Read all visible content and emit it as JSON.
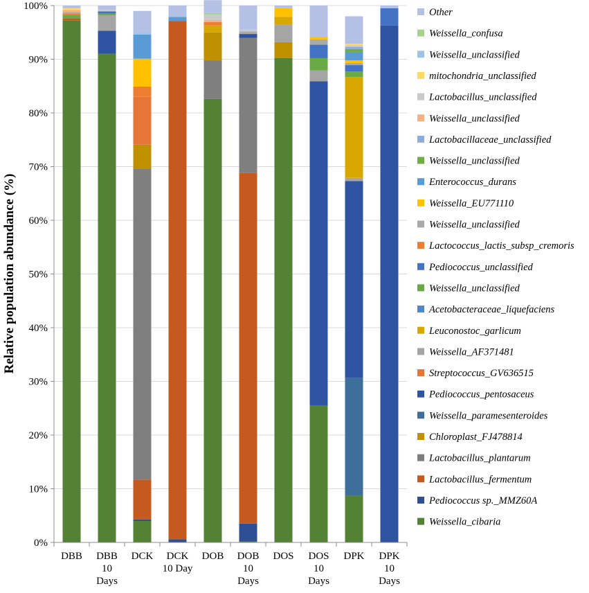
{
  "chart_data": {
    "type": "stacked-bar",
    "ylabel": "Relative population abundance (%)",
    "ylim": [
      0,
      100
    ],
    "yticks": [
      "0%",
      "10%",
      "20%",
      "30%",
      "40%",
      "50%",
      "60%",
      "70%",
      "80%",
      "90%",
      "100%"
    ],
    "categories": [
      {
        "lines": [
          "DBB"
        ]
      },
      {
        "lines": [
          "DBB",
          "10",
          "Days"
        ]
      },
      {
        "lines": [
          "DCK"
        ]
      },
      {
        "lines": [
          "DCK",
          "10 Day"
        ]
      },
      {
        "lines": [
          "DOB"
        ]
      },
      {
        "lines": [
          "DOB",
          "10",
          "Days"
        ]
      },
      {
        "lines": [
          "DOS"
        ]
      },
      {
        "lines": [
          "DOS",
          "10",
          "Days"
        ]
      },
      {
        "lines": [
          "DPK"
        ]
      },
      {
        "lines": [
          "DPK",
          "10",
          "Days"
        ]
      }
    ],
    "series": [
      {
        "name": "Weissella_cibaria",
        "color": "#548235",
        "values": [
          97.2,
          91.0,
          4.0,
          0.0,
          82.6,
          0.2,
          90.2,
          25.5,
          8.7,
          0.0
        ]
      },
      {
        "name": "Pediococcus sp._MMZ60A",
        "color": "#2f4f94",
        "values": [
          0.0,
          0.0,
          0.3,
          0.6,
          0.0,
          3.3,
          0.0,
          0.0,
          0.0,
          0.0
        ]
      },
      {
        "name": "Lactobacillus_fermentum",
        "color": "#c55a20",
        "values": [
          0.4,
          0.0,
          7.4,
          96.5,
          0.0,
          65.3,
          0.0,
          0.0,
          0.0,
          0.0
        ]
      },
      {
        "name": "Lactobacillus_plantarum",
        "color": "#7f7f7f",
        "values": [
          0.0,
          0.0,
          57.9,
          0.0,
          7.2,
          25.2,
          0.0,
          0.0,
          0.0,
          0.0
        ]
      },
      {
        "name": "Chloroplast_FJ478814",
        "color": "#bf9000",
        "values": [
          0.0,
          0.0,
          4.5,
          0.0,
          5.2,
          0.0,
          3.0,
          0.0,
          0.0,
          0.0
        ]
      },
      {
        "name": "Weissella_paramesenteroides",
        "color": "#3d6f9a",
        "values": [
          0.0,
          0.0,
          0.0,
          0.0,
          0.0,
          0.0,
          0.0,
          0.0,
          22.0,
          0.0
        ]
      },
      {
        "name": "Pediococcus_pentosaceus",
        "color": "#2e53a0",
        "values": [
          0.0,
          4.3,
          0.0,
          0.0,
          0.0,
          0.7,
          0.0,
          60.4,
          36.6,
          96.3
        ]
      },
      {
        "name": "Streptococcus_GV636515",
        "color": "#e67638",
        "values": [
          0.0,
          0.0,
          8.9,
          0.0,
          0.0,
          0.0,
          0.0,
          0.0,
          0.0,
          0.0
        ]
      },
      {
        "name": "Weissella_AF371481",
        "color": "#a5a5a5",
        "values": [
          0.0,
          2.9,
          0.0,
          0.0,
          0.0,
          0.0,
          3.2,
          2.0,
          0.6,
          0.0
        ]
      },
      {
        "name": "Leuconostoc_garlicum",
        "color": "#d9a800",
        "values": [
          0.0,
          0.0,
          0.0,
          0.0,
          1.3,
          0.0,
          1.5,
          0.0,
          18.8,
          0.0
        ]
      },
      {
        "name": "Acetobacteraceae_liquefaciens",
        "color": "#4f87c7",
        "values": [
          0.0,
          0.0,
          0.0,
          0.0,
          0.0,
          0.0,
          0.0,
          0.0,
          0.0,
          0.0
        ]
      },
      {
        "name": "Weissella_unclassified",
        "color": "#6aaa46",
        "values": [
          0.6,
          0.3,
          0.0,
          0.0,
          0.0,
          0.0,
          0.0,
          2.3,
          1.0,
          0.0
        ]
      },
      {
        "name": "Pediococcus_unclassified",
        "color": "#4472c4",
        "values": [
          0.0,
          0.4,
          0.0,
          0.0,
          0.0,
          0.0,
          0.0,
          2.5,
          1.2,
          3.2
        ]
      },
      {
        "name": "Lactococcus_lactis_subsp_cremoris",
        "color": "#ed7d31",
        "values": [
          0.3,
          0.0,
          1.9,
          0.0,
          0.6,
          0.0,
          0.0,
          0.0,
          0.0,
          0.0
        ]
      },
      {
        "name": "Weissella_unclassified",
        "color": "#a9a9a9",
        "values": [
          0.3,
          0.0,
          0.0,
          0.0,
          0.0,
          0.5,
          0.0,
          1.0,
          0.4,
          0.0
        ]
      },
      {
        "name": "Weissella_EU771110",
        "color": "#ffc000",
        "values": [
          0.0,
          0.0,
          5.2,
          0.0,
          0.0,
          0.0,
          1.6,
          0.5,
          0.5,
          0.0
        ]
      },
      {
        "name": "Enterococcus_durans",
        "color": "#5b9bd5",
        "values": [
          0.0,
          0.0,
          4.5,
          0.8,
          0.0,
          0.0,
          0.0,
          0.0,
          1.5,
          0.0
        ]
      },
      {
        "name": "Weissella_unclassified",
        "color": "#70ad47",
        "values": [
          0.0,
          0.0,
          0.0,
          0.0,
          0.0,
          0.0,
          0.0,
          0.0,
          0.6,
          0.0
        ]
      },
      {
        "name": "Lactobacillaceae_unclassified",
        "color": "#8faadc",
        "values": [
          0.0,
          0.0,
          0.0,
          0.0,
          0.0,
          0.0,
          0.0,
          0.0,
          0.4,
          0.0
        ]
      },
      {
        "name": "Weissella_unclassified",
        "color": "#f4b183",
        "values": [
          0.4,
          0.0,
          0.0,
          0.0,
          0.4,
          0.0,
          0.0,
          0.0,
          0.0,
          0.0
        ]
      },
      {
        "name": "Lactobacillus_unclassified",
        "color": "#c9c9c9",
        "values": [
          0.0,
          0.3,
          0.0,
          0.0,
          1.0,
          0.3,
          0.0,
          0.0,
          0.3,
          0.0
        ]
      },
      {
        "name": "mitochondria_unclassified",
        "color": "#ffd966",
        "values": [
          0.3,
          0.0,
          0.0,
          0.0,
          0.0,
          0.0,
          0.0,
          0.0,
          0.3,
          0.0
        ]
      },
      {
        "name": "Weissella_unclassified",
        "color": "#9dc3e6",
        "values": [
          0.0,
          0.0,
          0.3,
          0.0,
          0.0,
          0.0,
          0.0,
          0.0,
          0.0,
          0.0
        ]
      },
      {
        "name": "Weissella_confusa",
        "color": "#a9d18e",
        "values": [
          0.0,
          0.0,
          0.0,
          0.0,
          0.3,
          0.0,
          0.0,
          0.0,
          0.0,
          0.0
        ]
      },
      {
        "name": "Other",
        "color": "#b4c0e4",
        "values": [
          0.5,
          0.8,
          4.1,
          2.1,
          2.4,
          4.5,
          0.5,
          5.8,
          5.1,
          0.5
        ]
      }
    ]
  }
}
